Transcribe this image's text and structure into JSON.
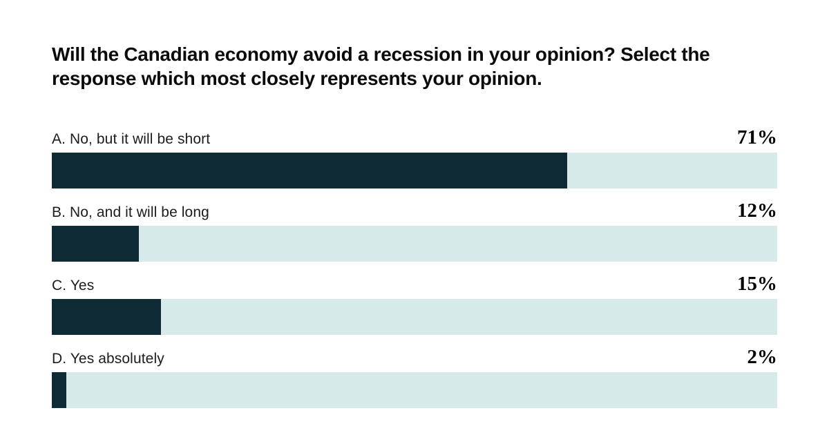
{
  "chart_data": {
    "type": "bar",
    "orientation": "horizontal",
    "title": "Will the Canadian economy avoid a recession in your opinion? Select the response which most closely represents your opinion.",
    "categories": [
      "A. No, but it will be short",
      "B. No, and it will be long",
      "C. Yes",
      "D. Yes absolutely"
    ],
    "values": [
      71,
      12,
      15,
      2
    ],
    "rows": [
      {
        "label": "A. No, but it will be short",
        "value": 71,
        "value_label": "71%"
      },
      {
        "label": "B. No, and it will be long",
        "value": 12,
        "value_label": "12%"
      },
      {
        "label": "C. Yes",
        "value": 15,
        "value_label": "15%"
      },
      {
        "label": "D. Yes absolutely",
        "value": 2,
        "value_label": "2%"
      }
    ],
    "xlim": [
      0,
      100
    ],
    "grid": false,
    "legend": "none",
    "value_label_position": "right-aligned-above-bar",
    "colors": {
      "background": "#ffffff",
      "title_text": "#0b0b0b",
      "label_text": "#1c1c1c",
      "value_text": "#000000",
      "bar_fill": "#0d2a35",
      "bar_track": "#d6ebe9"
    }
  }
}
